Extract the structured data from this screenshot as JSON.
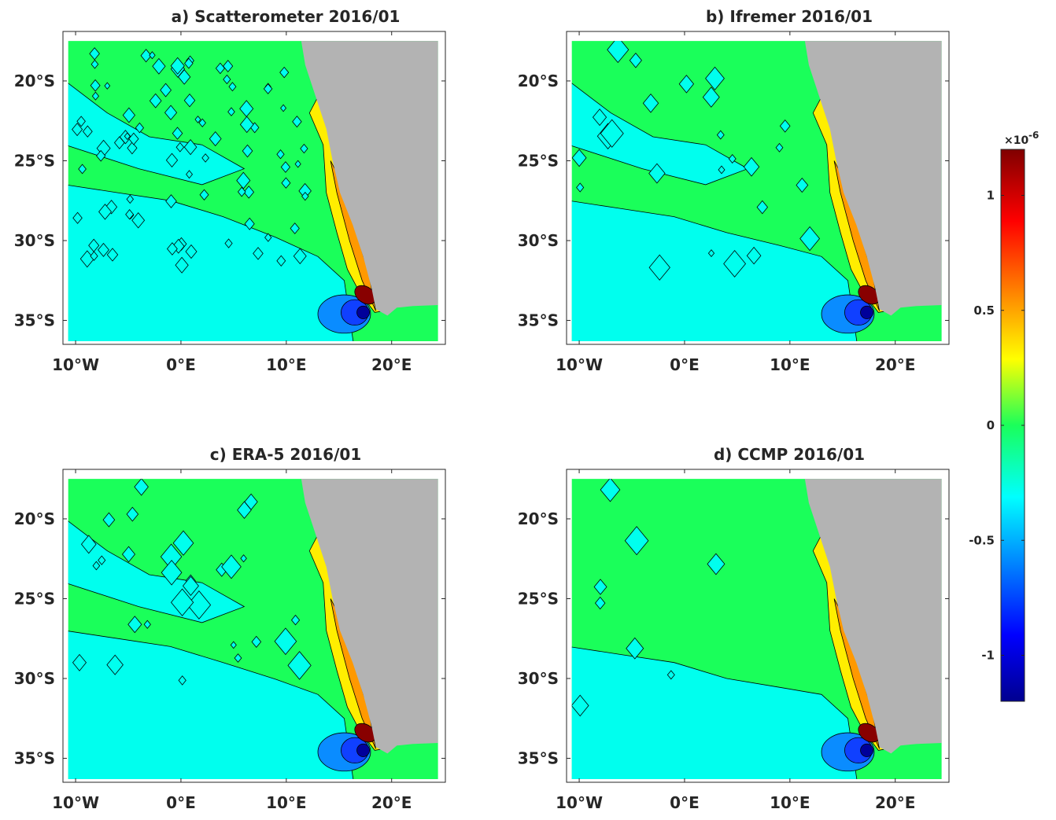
{
  "chart_data": [
    {
      "type": "contour",
      "title": "a) Scatterometer 2016/01",
      "xlim": [
        -11.2,
        25.1
      ],
      "ylim": [
        -36.5,
        -16.9
      ],
      "xticks": [
        {
          "value": -10,
          "label": "10°W"
        },
        {
          "value": 0,
          "label": "0°E"
        },
        {
          "value": 10,
          "label": "10°E"
        },
        {
          "value": 20,
          "label": "20°E"
        }
      ],
      "yticks": [
        {
          "value": -20,
          "label": "20°S"
        },
        {
          "value": -25,
          "label": "25°S"
        },
        {
          "value": -30,
          "label": "30°S"
        },
        {
          "value": -35,
          "label": "35°S"
        }
      ]
    },
    {
      "type": "contour",
      "title": "b) Ifremer 2016/01",
      "xlim": [
        -11.2,
        25.1
      ],
      "ylim": [
        -36.5,
        -16.9
      ],
      "xticks": [
        {
          "value": -10,
          "label": "10°W"
        },
        {
          "value": 0,
          "label": "0°E"
        },
        {
          "value": 10,
          "label": "10°E"
        },
        {
          "value": 20,
          "label": "20°E"
        }
      ],
      "yticks": [
        {
          "value": -20,
          "label": "20°S"
        },
        {
          "value": -25,
          "label": "25°S"
        },
        {
          "value": -30,
          "label": "30°S"
        },
        {
          "value": -35,
          "label": "35°S"
        }
      ]
    },
    {
      "type": "contour",
      "title": "c) ERA-5 2016/01",
      "xlim": [
        -11.2,
        25.1
      ],
      "ylim": [
        -36.5,
        -16.9
      ],
      "xticks": [
        {
          "value": -10,
          "label": "10°W"
        },
        {
          "value": 0,
          "label": "0°E"
        },
        {
          "value": 10,
          "label": "10°E"
        },
        {
          "value": 20,
          "label": "20°E"
        }
      ],
      "yticks": [
        {
          "value": -20,
          "label": "20°S"
        },
        {
          "value": -25,
          "label": "25°S"
        },
        {
          "value": -30,
          "label": "30°S"
        },
        {
          "value": -35,
          "label": "35°S"
        }
      ]
    },
    {
      "type": "contour",
      "title": "d) CCMP 2016/01",
      "xlim": [
        -11.2,
        25.1
      ],
      "ylim": [
        -36.5,
        -16.9
      ],
      "xticks": [
        {
          "value": -10,
          "label": "10°W"
        },
        {
          "value": 0,
          "label": "0°E"
        },
        {
          "value": 10,
          "label": "10°E"
        },
        {
          "value": 20,
          "label": "20°E"
        }
      ],
      "yticks": [
        {
          "value": -20,
          "label": "20°S"
        },
        {
          "value": -25,
          "label": "25°S"
        },
        {
          "value": -30,
          "label": "30°S"
        },
        {
          "value": -35,
          "label": "35°S"
        }
      ]
    }
  ],
  "colorbar": {
    "colormap": "jet",
    "lim": [
      -1.2,
      1.2
    ],
    "ticks": [
      -1,
      -0.5,
      0,
      0.5,
      1
    ],
    "multiplier": "×10",
    "exponent": "-6"
  }
}
